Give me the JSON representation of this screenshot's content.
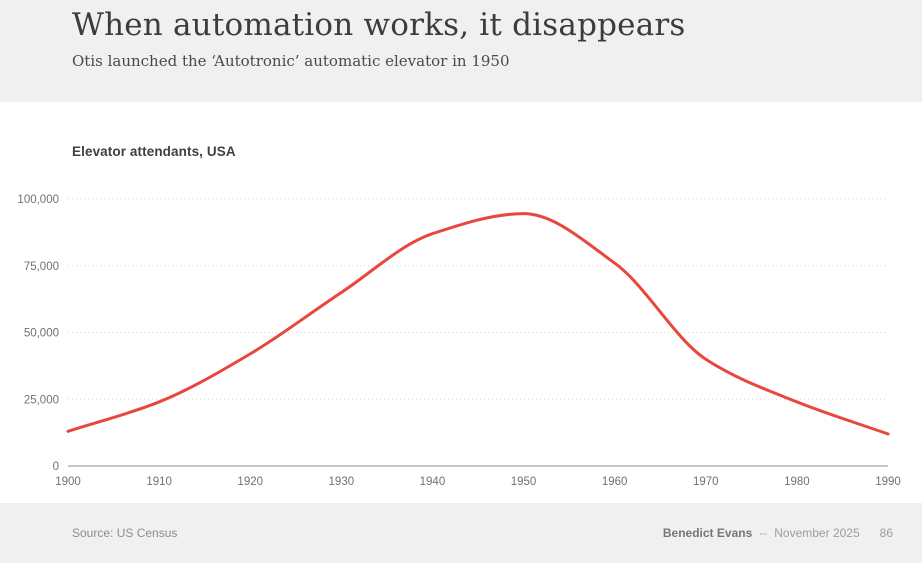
{
  "slide": {
    "title": "When automation works, it disappears",
    "subtitle": "Otis launched the ‘Autotronic’ automatic elevator in 1950"
  },
  "chart_data": {
    "type": "line",
    "title": "Elevator attendants, USA",
    "x": [
      1900,
      1910,
      1920,
      1930,
      1940,
      1950,
      1960,
      1970,
      1980,
      1990
    ],
    "series": [
      {
        "name": "Elevator attendants, USA",
        "values": [
          13000,
          24000,
          42000,
          65000,
          87000,
          94500,
          76000,
          40000,
          24000,
          12000
        ]
      }
    ],
    "xlabel": "",
    "ylabel": "",
    "xlim": [
      1900,
      1990
    ],
    "ylim": [
      0,
      100000
    ],
    "yticks": [
      0,
      25000,
      50000,
      75000,
      100000
    ],
    "ytick_labels": [
      "0",
      "25,000",
      "50,000",
      "75,000",
      "100,000"
    ],
    "xticks": [
      1900,
      1910,
      1920,
      1930,
      1940,
      1950,
      1960,
      1970,
      1980,
      1990
    ],
    "xtick_labels": [
      "1900",
      "1910",
      "1920",
      "1930",
      "1940",
      "1950",
      "1960",
      "1970",
      "1980",
      "1990"
    ],
    "grid": "horizontal-dotted",
    "legend": "none",
    "line_color": "#e9463d"
  },
  "footer": {
    "source": "Source: US Census",
    "author": "Benedict Evans",
    "separator": "--",
    "date": "November 2025",
    "page": "86"
  },
  "colors": {
    "band_bg": "#f0f0f0",
    "grid": "#d8d8d8",
    "baseline": "#c6c6c6",
    "axis_text": "#717171"
  }
}
